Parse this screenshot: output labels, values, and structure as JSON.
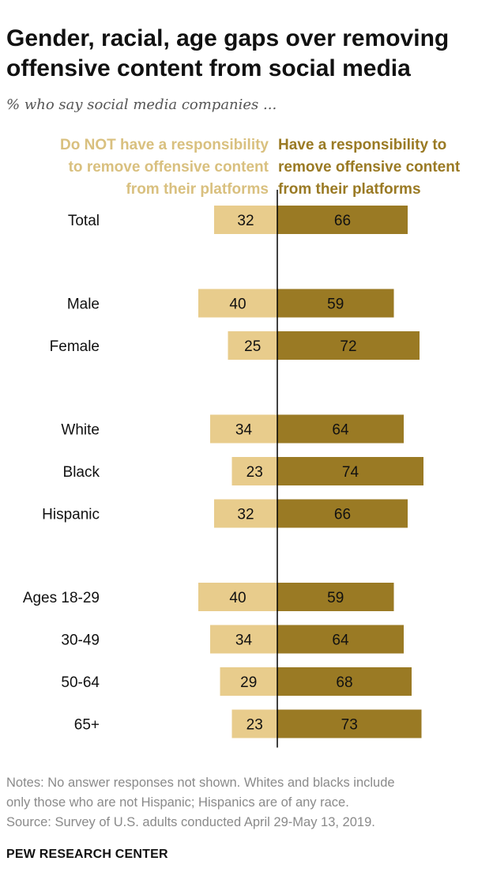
{
  "title": "Gender, racial, age gaps over removing offensive content from social media",
  "subtitle": "% who say social media companies ...",
  "legend": {
    "left": [
      "Do NOT have a responsibility",
      "to remove offensive content",
      "from their platforms"
    ],
    "right": [
      "Have a responsibility to",
      "remove offensive content",
      "from their platforms"
    ]
  },
  "colors": {
    "not_responsible": "#e8cc8c",
    "responsible": "#9a7a24",
    "divider": "#000000"
  },
  "chart_data": {
    "type": "bar",
    "orientation": "horizontal-diverging",
    "categories": [
      "Total",
      "Male",
      "Female",
      "White",
      "Black",
      "Hispanic",
      "Ages 18-29",
      "30-49",
      "50-64",
      "65+"
    ],
    "series": [
      {
        "name": "Do NOT have a responsibility to remove offensive content from their platforms",
        "values": [
          32,
          40,
          25,
          34,
          23,
          32,
          40,
          34,
          29,
          23
        ]
      },
      {
        "name": "Have a responsibility to remove offensive content from their platforms",
        "values": [
          66,
          59,
          72,
          64,
          74,
          66,
          59,
          64,
          68,
          73
        ]
      }
    ],
    "groups": [
      [
        "Total"
      ],
      [
        "Male",
        "Female"
      ],
      [
        "White",
        "Black",
        "Hispanic"
      ],
      [
        "Ages 18-29",
        "30-49",
        "50-64",
        "65+"
      ]
    ],
    "unit": "%"
  },
  "notes": [
    "Notes: No answer responses not shown. Whites and blacks include",
    "only those who are not Hispanic; Hispanics are of any race.",
    "Source: Survey of U.S. adults conducted April 29-May 13, 2019."
  ],
  "brand": "PEW RESEARCH CENTER"
}
